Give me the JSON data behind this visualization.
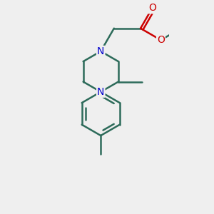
{
  "background_color": "#efefef",
  "bond_color": "#2d6b5a",
  "N_color": "#0000cc",
  "O_color": "#cc0000",
  "bond_width": 1.8,
  "font_size_atoms": 10,
  "figsize": [
    3.0,
    3.0
  ],
  "dpi": 100,
  "xlim": [
    -1.8,
    2.2
  ],
  "ylim": [
    -4.5,
    2.2
  ]
}
